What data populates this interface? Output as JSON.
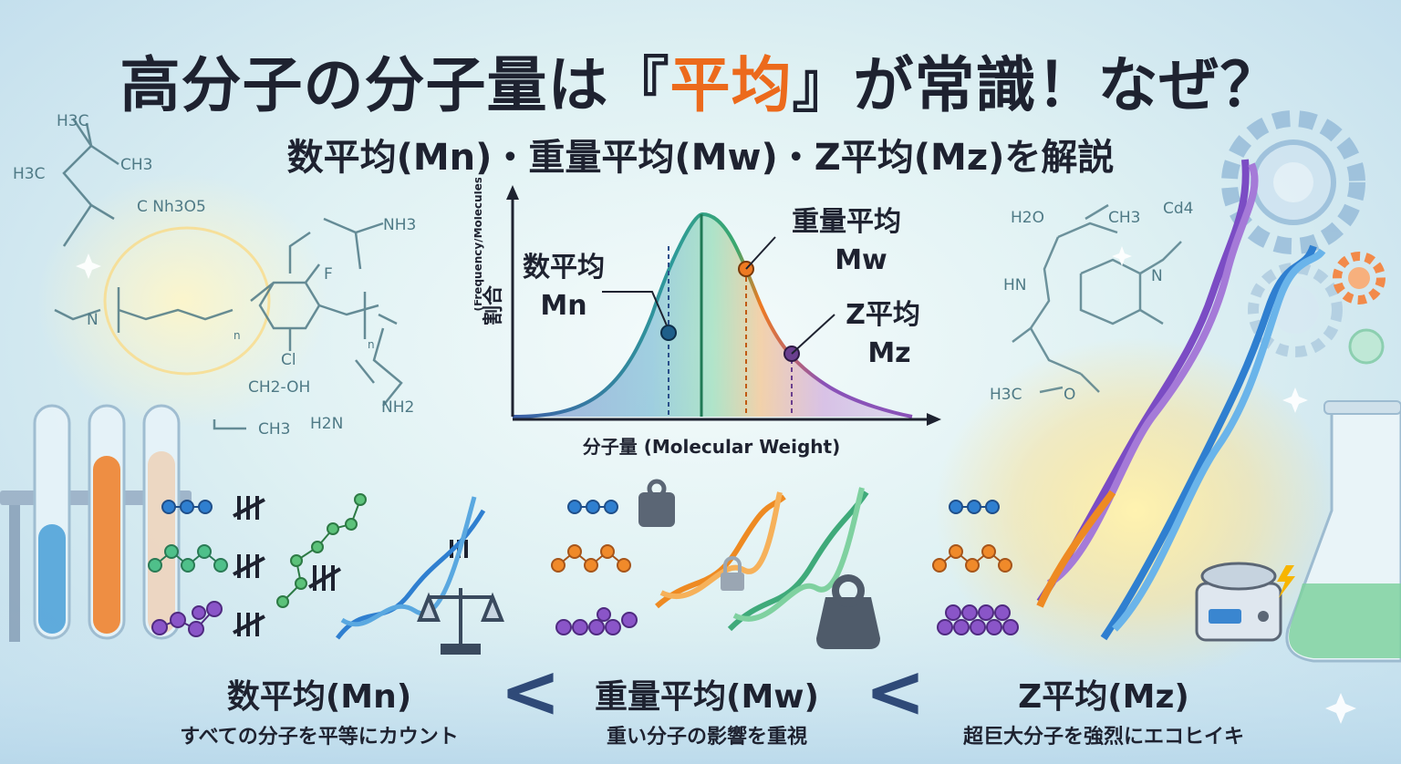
{
  "header": {
    "title_pre": "高分子の分子量は『",
    "title_highlight": "平均",
    "title_post": "』が常識！なぜ？",
    "subtitle": "数平均(Mn)・重量平均(Mw)・Z平均(Mz)を解説"
  },
  "chart": {
    "ylabel": "割合",
    "ylabel_en": "(Frequency/Molecules)",
    "xlabel": "分子量 (Molecular Weight)",
    "markers": [
      {
        "line1": "数平均",
        "line2": "Mn",
        "color": "#1f5f8a"
      },
      {
        "line1": "重量平均",
        "line2": "Mw",
        "color": "#ee7a22"
      },
      {
        "line1": "Z平均",
        "line2": "Mz",
        "color": "#6a3f8f"
      }
    ]
  },
  "chemistry": {
    "left": [
      "H3C",
      "H3C",
      "CH3",
      "C Nh3O5",
      "N",
      "NH3",
      "F",
      "Cl",
      "n",
      "n",
      "CH2-OH",
      "CH3",
      "H2N",
      "NH2"
    ],
    "right": [
      "H2O",
      "CH3",
      "Cd4",
      "HN",
      "N",
      "H3C",
      "O"
    ]
  },
  "bottom": {
    "sections": [
      {
        "title": "数平均(Mn)",
        "desc": "すべての分子を平等にカウント"
      },
      {
        "title": "重量平均(Mw)",
        "desc": "重い分子の影響を重視"
      },
      {
        "title": "Z平均(Mz)",
        "desc": "超巨大分子を強烈にエコヒイキ"
      }
    ],
    "comparator": "<"
  },
  "colors": {
    "title_text": "#1e2230",
    "highlight": "#ec6a1c",
    "mn": "#1f5f8a",
    "mw": "#ee7a22",
    "mz": "#6a3f8f",
    "dna_blue": "#2f7fd0",
    "dna_purple": "#7b4cc4",
    "dna_orange": "#ee8a22",
    "dna_green": "#3faa7a"
  }
}
